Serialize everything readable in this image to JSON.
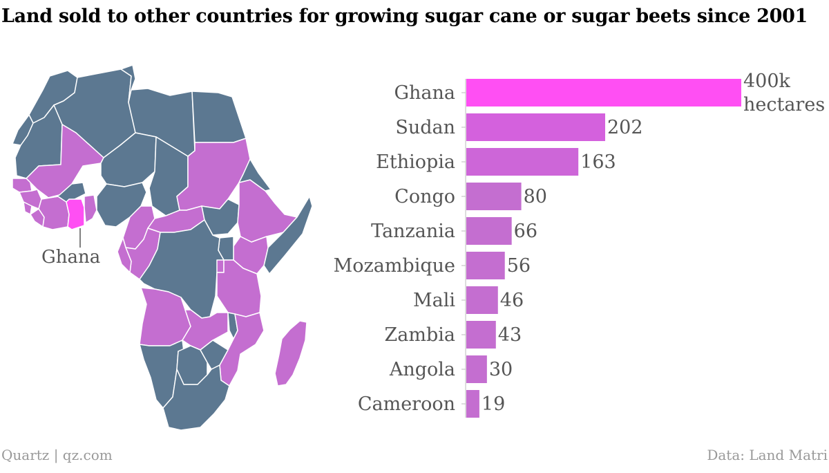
{
  "title": "Land sold to other countries for growing sugar cane or sugar beets since 2001",
  "map": {
    "highlight_label": "Ghana",
    "colors": {
      "other": "#5c7891",
      "sold": "#c46ed0",
      "highlight": "#ff4ff3",
      "border": "#ffffff"
    }
  },
  "chart_data": {
    "type": "bar",
    "orientation": "horizontal",
    "categories": [
      "Ghana",
      "Sudan",
      "Ethiopia",
      "Congo",
      "Tanzania",
      "Mozambique",
      "Mali",
      "Zambia",
      "Angola",
      "Cameroon"
    ],
    "values": [
      400,
      202,
      163,
      80,
      66,
      56,
      46,
      43,
      30,
      19
    ],
    "value_labels": [
      "400k hectares",
      "202",
      "163",
      "80",
      "66",
      "56",
      "46",
      "43",
      "30",
      "19"
    ],
    "unit": "thousand hectares",
    "colors": [
      "#ff4ff3",
      "#d461dd",
      "#cd66d8",
      "#c46ed0",
      "#c46ed0",
      "#c46ed0",
      "#c46ed0",
      "#c46ed0",
      "#c46ed0",
      "#c46ed0"
    ]
  },
  "footer": {
    "source_left": "Quartz | qz.com",
    "source_right": "Data: Land Matri"
  }
}
